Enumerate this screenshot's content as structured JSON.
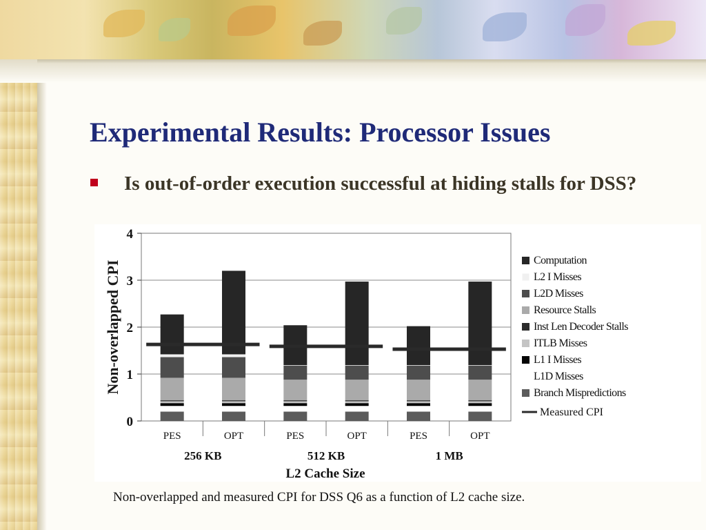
{
  "slide": {
    "title": "Experimental Results: Processor Issues",
    "bullet": "Is out-of-order execution successful at hiding stalls for DSS?",
    "caption": "Non-overlapped and measured CPI for DSS Q6 as a function of L2 cache size."
  },
  "colors": {
    "title": "#1f2a78",
    "bullet_marker": "#c0001c",
    "bullet_text": "#3b3526"
  },
  "chart_data": {
    "type": "bar",
    "stacked": true,
    "title": "",
    "xlabel": "L2 Cache Size",
    "ylabel": "Non-overlapped CPI",
    "ylim": [
      0,
      4
    ],
    "yticks": [
      0,
      1,
      2,
      3,
      4
    ],
    "grid": true,
    "legend_position": "right",
    "categories": [
      "PES",
      "OPT",
      "PES",
      "OPT",
      "PES",
      "OPT"
    ],
    "groups": [
      {
        "label": "256 KB",
        "categories": [
          "PES",
          "OPT"
        ]
      },
      {
        "label": "512 KB",
        "categories": [
          "PES",
          "OPT"
        ]
      },
      {
        "label": "1 MB",
        "categories": [
          "PES",
          "OPT"
        ]
      }
    ],
    "series": [
      {
        "name": "Branch Mispredictions",
        "color": "#5b5b5b",
        "values": [
          0.2,
          0.2,
          0.2,
          0.2,
          0.2,
          0.2
        ]
      },
      {
        "name": "L1D Misses",
        "color": "#ffffff",
        "values": [
          0.12,
          0.12,
          0.12,
          0.12,
          0.12,
          0.12
        ]
      },
      {
        "name": "L1 I Misses",
        "color": "#050505",
        "values": [
          0.06,
          0.06,
          0.06,
          0.06,
          0.06,
          0.06
        ]
      },
      {
        "name": "ITLB Misses",
        "color": "#c4c4c4",
        "values": [
          0.04,
          0.04,
          0.04,
          0.04,
          0.04,
          0.04
        ]
      },
      {
        "name": "Inst Len Decoder Stalls",
        "color": "#2c2c2c",
        "values": [
          0.02,
          0.02,
          0.02,
          0.02,
          0.02,
          0.02
        ]
      },
      {
        "name": "Resource Stalls",
        "color": "#aaaaaa",
        "values": [
          0.48,
          0.48,
          0.44,
          0.44,
          0.44,
          0.44
        ]
      },
      {
        "name": "L2D Misses",
        "color": "#4d4d4d",
        "values": [
          0.44,
          0.44,
          0.3,
          0.3,
          0.3,
          0.3
        ]
      },
      {
        "name": "L2 I Misses",
        "color": "#f0f0f0",
        "values": [
          0.06,
          0.06,
          0.01,
          0.01,
          0.01,
          0.01
        ]
      },
      {
        "name": "Computation",
        "color": "#262626",
        "values": [
          0.85,
          1.78,
          0.85,
          1.78,
          0.83,
          1.78
        ]
      }
    ],
    "legend_order": [
      "Computation",
      "L2 I Misses",
      "L2D Misses",
      "Resource Stalls",
      "Inst Len Decoder Stalls",
      "ITLB Misses",
      "L1 I Misses",
      "L1D Misses",
      "Branch Mispredictions"
    ],
    "measured_cpi": {
      "name": "Measured CPI",
      "color": "#2a2a2a",
      "values": [
        1.63,
        1.63,
        1.59,
        1.59,
        1.53,
        1.53
      ]
    }
  }
}
